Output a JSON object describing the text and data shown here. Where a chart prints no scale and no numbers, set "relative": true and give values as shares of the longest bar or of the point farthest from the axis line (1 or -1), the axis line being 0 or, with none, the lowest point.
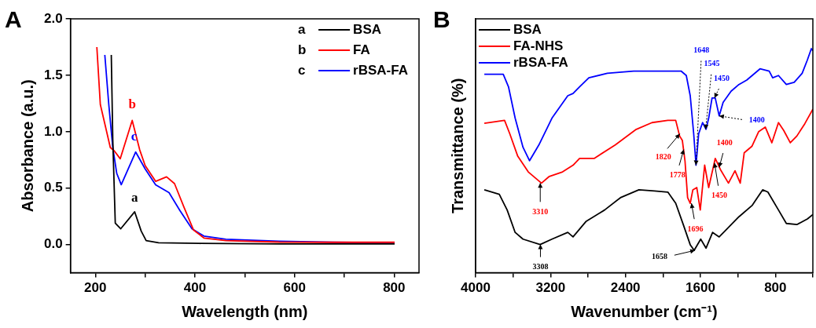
{
  "chart_data": [
    {
      "type": "line",
      "title": "A",
      "xlabel": "Wavelength (nm)",
      "ylabel": "Absorbance (a.u.)",
      "xlim": [
        150,
        850
      ],
      "ylim": [
        -0.25,
        2.0
      ],
      "xticks": [
        200,
        {
          "value": 300,
          "label": null
        },
        400,
        {
          "value": 500,
          "label": null
        },
        600,
        {
          "value": 700,
          "label": null
        },
        800
      ],
      "yticks": [
        {
          "value": 0,
          "label": "0.0"
        },
        {
          "value": 0.5,
          "label": "0.5"
        },
        {
          "value": 1,
          "label": "1.0"
        },
        {
          "value": 1.5,
          "label": "1.5"
        },
        {
          "value": 2,
          "label": "2.0"
        }
      ],
      "legend": "top right",
      "grid": false,
      "series": [
        {
          "name": "BSA",
          "color": "#000000",
          "x": [
            232,
            235,
            240,
            251,
            279,
            292,
            302,
            327,
            408,
            570,
            801
          ],
          "values": [
            1.68,
            0.93,
            0.19,
            0.14,
            0.29,
            0.12,
            0.035,
            0.016,
            0.01,
            0.005,
            0.005
          ]
        },
        {
          "name": "FA",
          "color": "#ff0000",
          "x": [
            203,
            210,
            219,
            230,
            238,
            250,
            274,
            289,
            300,
            321,
            343,
            359,
            378,
            397,
            418,
            462,
            569,
            677,
            801
          ],
          "values": [
            1.75,
            1.24,
            1.07,
            0.86,
            0.83,
            0.76,
            1.1,
            0.84,
            0.7,
            0.56,
            0.6,
            0.54,
            0.33,
            0.13,
            0.058,
            0.035,
            0.022,
            0.02,
            0.02
          ]
        },
        {
          "name": "rBSA-FA",
          "color": "#0000ff",
          "x": [
            219,
            227,
            235,
            243,
            252,
            281,
            300,
            321,
            348,
            370,
            394,
            418,
            462,
            569,
            677,
            801
          ],
          "values": [
            1.68,
            1.24,
            0.86,
            0.63,
            0.53,
            0.82,
            0.67,
            0.53,
            0.46,
            0.3,
            0.14,
            0.075,
            0.047,
            0.03,
            0.02,
            0.015
          ]
        }
      ],
      "annotations": [
        {
          "text": "a",
          "x": 279,
          "y": 0.29
        },
        {
          "text": "b",
          "x": 274,
          "y": 1.1
        },
        {
          "text": "c",
          "x": 281,
          "y": 0.82
        }
      ]
    },
    {
      "type": "line",
      "title": "B",
      "xlabel": "Wavenumber (cm⁻¹)",
      "ylabel": "Transmittance (%)",
      "relative": true,
      "xlim": [
        4000,
        400
      ],
      "xticks": [
        4000,
        {
          "value": 3600,
          "label": null
        },
        3200,
        {
          "value": 2800,
          "label": null
        },
        2400,
        {
          "value": 2000,
          "label": null
        },
        1600,
        {
          "value": 1200,
          "label": null
        },
        800,
        {
          "value": 400,
          "label": null
        }
      ],
      "tick_labels": "x",
      "legend": "top left",
      "grid": false,
      "series": [
        {
          "name": "BSA",
          "color": "#000000",
          "x": [
            3907,
            3747,
            3663,
            3578,
            3494,
            3311,
            3185,
            3016,
            2960,
            2819,
            2623,
            2454,
            2257,
            2089,
            1948,
            1864,
            1779,
            1709,
            1667,
            1597,
            1540,
            1470,
            1400,
            1330,
            1189,
            1049,
            936,
            880,
            767,
            683,
            571,
            458,
            400
          ],
          "values": [
            0.37,
            0.35,
            0.28,
            0.18,
            0.15,
            0.126,
            0.15,
            0.18,
            0.16,
            0.23,
            0.28,
            0.335,
            0.37,
            0.365,
            0.36,
            0.31,
            0.21,
            0.125,
            0.1,
            0.15,
            0.11,
            0.18,
            0.16,
            0.19,
            0.25,
            0.3,
            0.37,
            0.36,
            0.28,
            0.22,
            0.215,
            0.24,
            0.26
          ]
        },
        {
          "name": "FA-NHS",
          "color": "#ff0000",
          "x": [
            3907,
            3691,
            3635,
            3550,
            3438,
            3297,
            3213,
            3072,
            2960,
            2890,
            2735,
            2510,
            2285,
            2117,
            1948,
            1864,
            1822,
            1793,
            1765,
            1737,
            1709,
            1681,
            1639,
            1602,
            1555,
            1512,
            1442,
            1386,
            1301,
            1231,
            1175,
            1133,
            1049,
            978,
            908,
            838,
            767,
            711,
            641,
            571,
            486,
            400
          ],
          "values": [
            0.667,
            0.68,
            0.62,
            0.52,
            0.45,
            0.4,
            0.43,
            0.45,
            0.48,
            0.51,
            0.51,
            0.57,
            0.64,
            0.67,
            0.68,
            0.68,
            0.61,
            0.59,
            0.5,
            0.335,
            0.31,
            0.37,
            0.38,
            0.28,
            0.48,
            0.38,
            0.51,
            0.46,
            0.4,
            0.455,
            0.4,
            0.535,
            0.565,
            0.63,
            0.65,
            0.58,
            0.67,
            0.635,
            0.58,
            0.61,
            0.665,
            0.73
          ]
        },
        {
          "name": "rBSA-FA",
          "color": "#0000ff",
          "x": [
            3907,
            3705,
            3649,
            3578,
            3494,
            3424,
            3325,
            3185,
            3016,
            2960,
            2890,
            2791,
            2594,
            2313,
            1807,
            1751,
            1709,
            1672,
            1647,
            1619,
            1577,
            1540,
            1512,
            1476,
            1442,
            1400,
            1358,
            1273,
            1189,
            1105,
            964,
            866,
            829,
            767,
            683,
            599,
            514,
            458,
            416,
            400
          ],
          "values": [
            0.886,
            0.886,
            0.83,
            0.69,
            0.56,
            0.5,
            0.57,
            0.69,
            0.79,
            0.8,
            0.83,
            0.87,
            0.89,
            0.9,
            0.9,
            0.88,
            0.79,
            0.62,
            0.48,
            0.62,
            0.67,
            0.64,
            0.69,
            0.78,
            0.78,
            0.7,
            0.76,
            0.81,
            0.84,
            0.86,
            0.91,
            0.9,
            0.87,
            0.88,
            0.84,
            0.85,
            0.89,
            0.95,
            1.0,
            0.99
          ]
        }
      ],
      "annotations": [
        {
          "text": "3310",
          "x": 3310,
          "y": 0.4
        },
        {
          "text": "3308",
          "x": 3308,
          "y": 0.126
        },
        {
          "text": "1658",
          "x": 1658,
          "y": 0.1
        },
        {
          "text": "1696",
          "x": 1696,
          "y": 0.31
        },
        {
          "text": "1778",
          "x": 1778,
          "y": 0.55
        },
        {
          "text": "1820",
          "x": 1820,
          "y": 0.62
        },
        {
          "text": "1400",
          "x": 1400,
          "y": 0.47
        },
        {
          "text": "1450",
          "x": 1450,
          "y": 0.49
        },
        {
          "text": "1648",
          "x": 1648,
          "y": 0.48
        },
        {
          "text": "1545",
          "x": 1545,
          "y": 0.64
        },
        {
          "text": "1450",
          "x": 1450,
          "y": 0.78
        },
        {
          "text": "1400",
          "x": 1400,
          "y": 0.7
        }
      ]
    }
  ]
}
